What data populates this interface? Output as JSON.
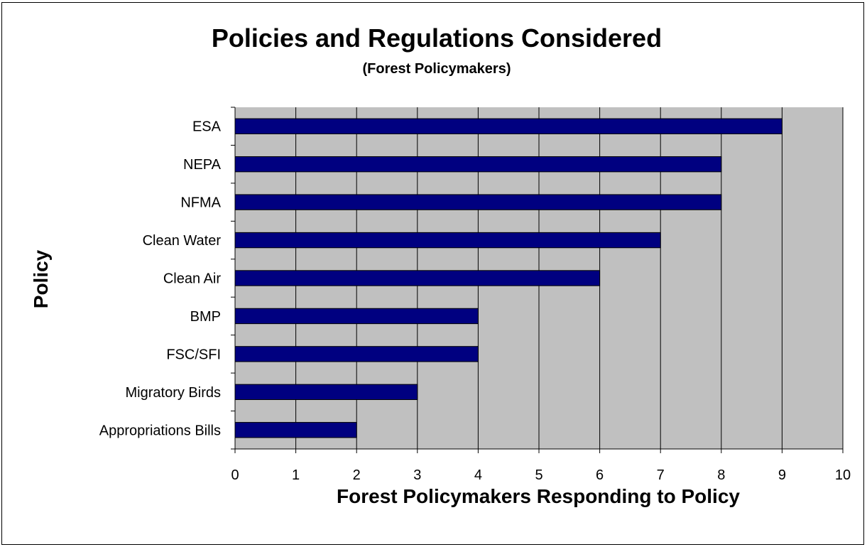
{
  "chart_data": {
    "type": "bar",
    "orientation": "horizontal",
    "title": "Policies and Regulations Considered",
    "subtitle": "(Forest Policymakers)",
    "xlabel": "Forest Policymakers Responding to Policy",
    "ylabel": "Policy",
    "xlim": [
      0,
      10
    ],
    "xticks": [
      "0",
      "1",
      "2",
      "3",
      "4",
      "5",
      "6",
      "7",
      "8",
      "9",
      "10"
    ],
    "categories": [
      "ESA",
      "NEPA",
      "NFMA",
      "Clean Water",
      "Clean Air",
      "BMP",
      "FSC/SFI",
      "Migratory Birds",
      "Appropriations Bills"
    ],
    "values": [
      9,
      8,
      8,
      7,
      6,
      4,
      4,
      3,
      2
    ],
    "grid": true,
    "legend": "none",
    "colors": {
      "bar_fill": "#000080",
      "bar_stroke": "#000000",
      "plot_background": "#c0c0c0",
      "gridline": "#000000"
    }
  }
}
